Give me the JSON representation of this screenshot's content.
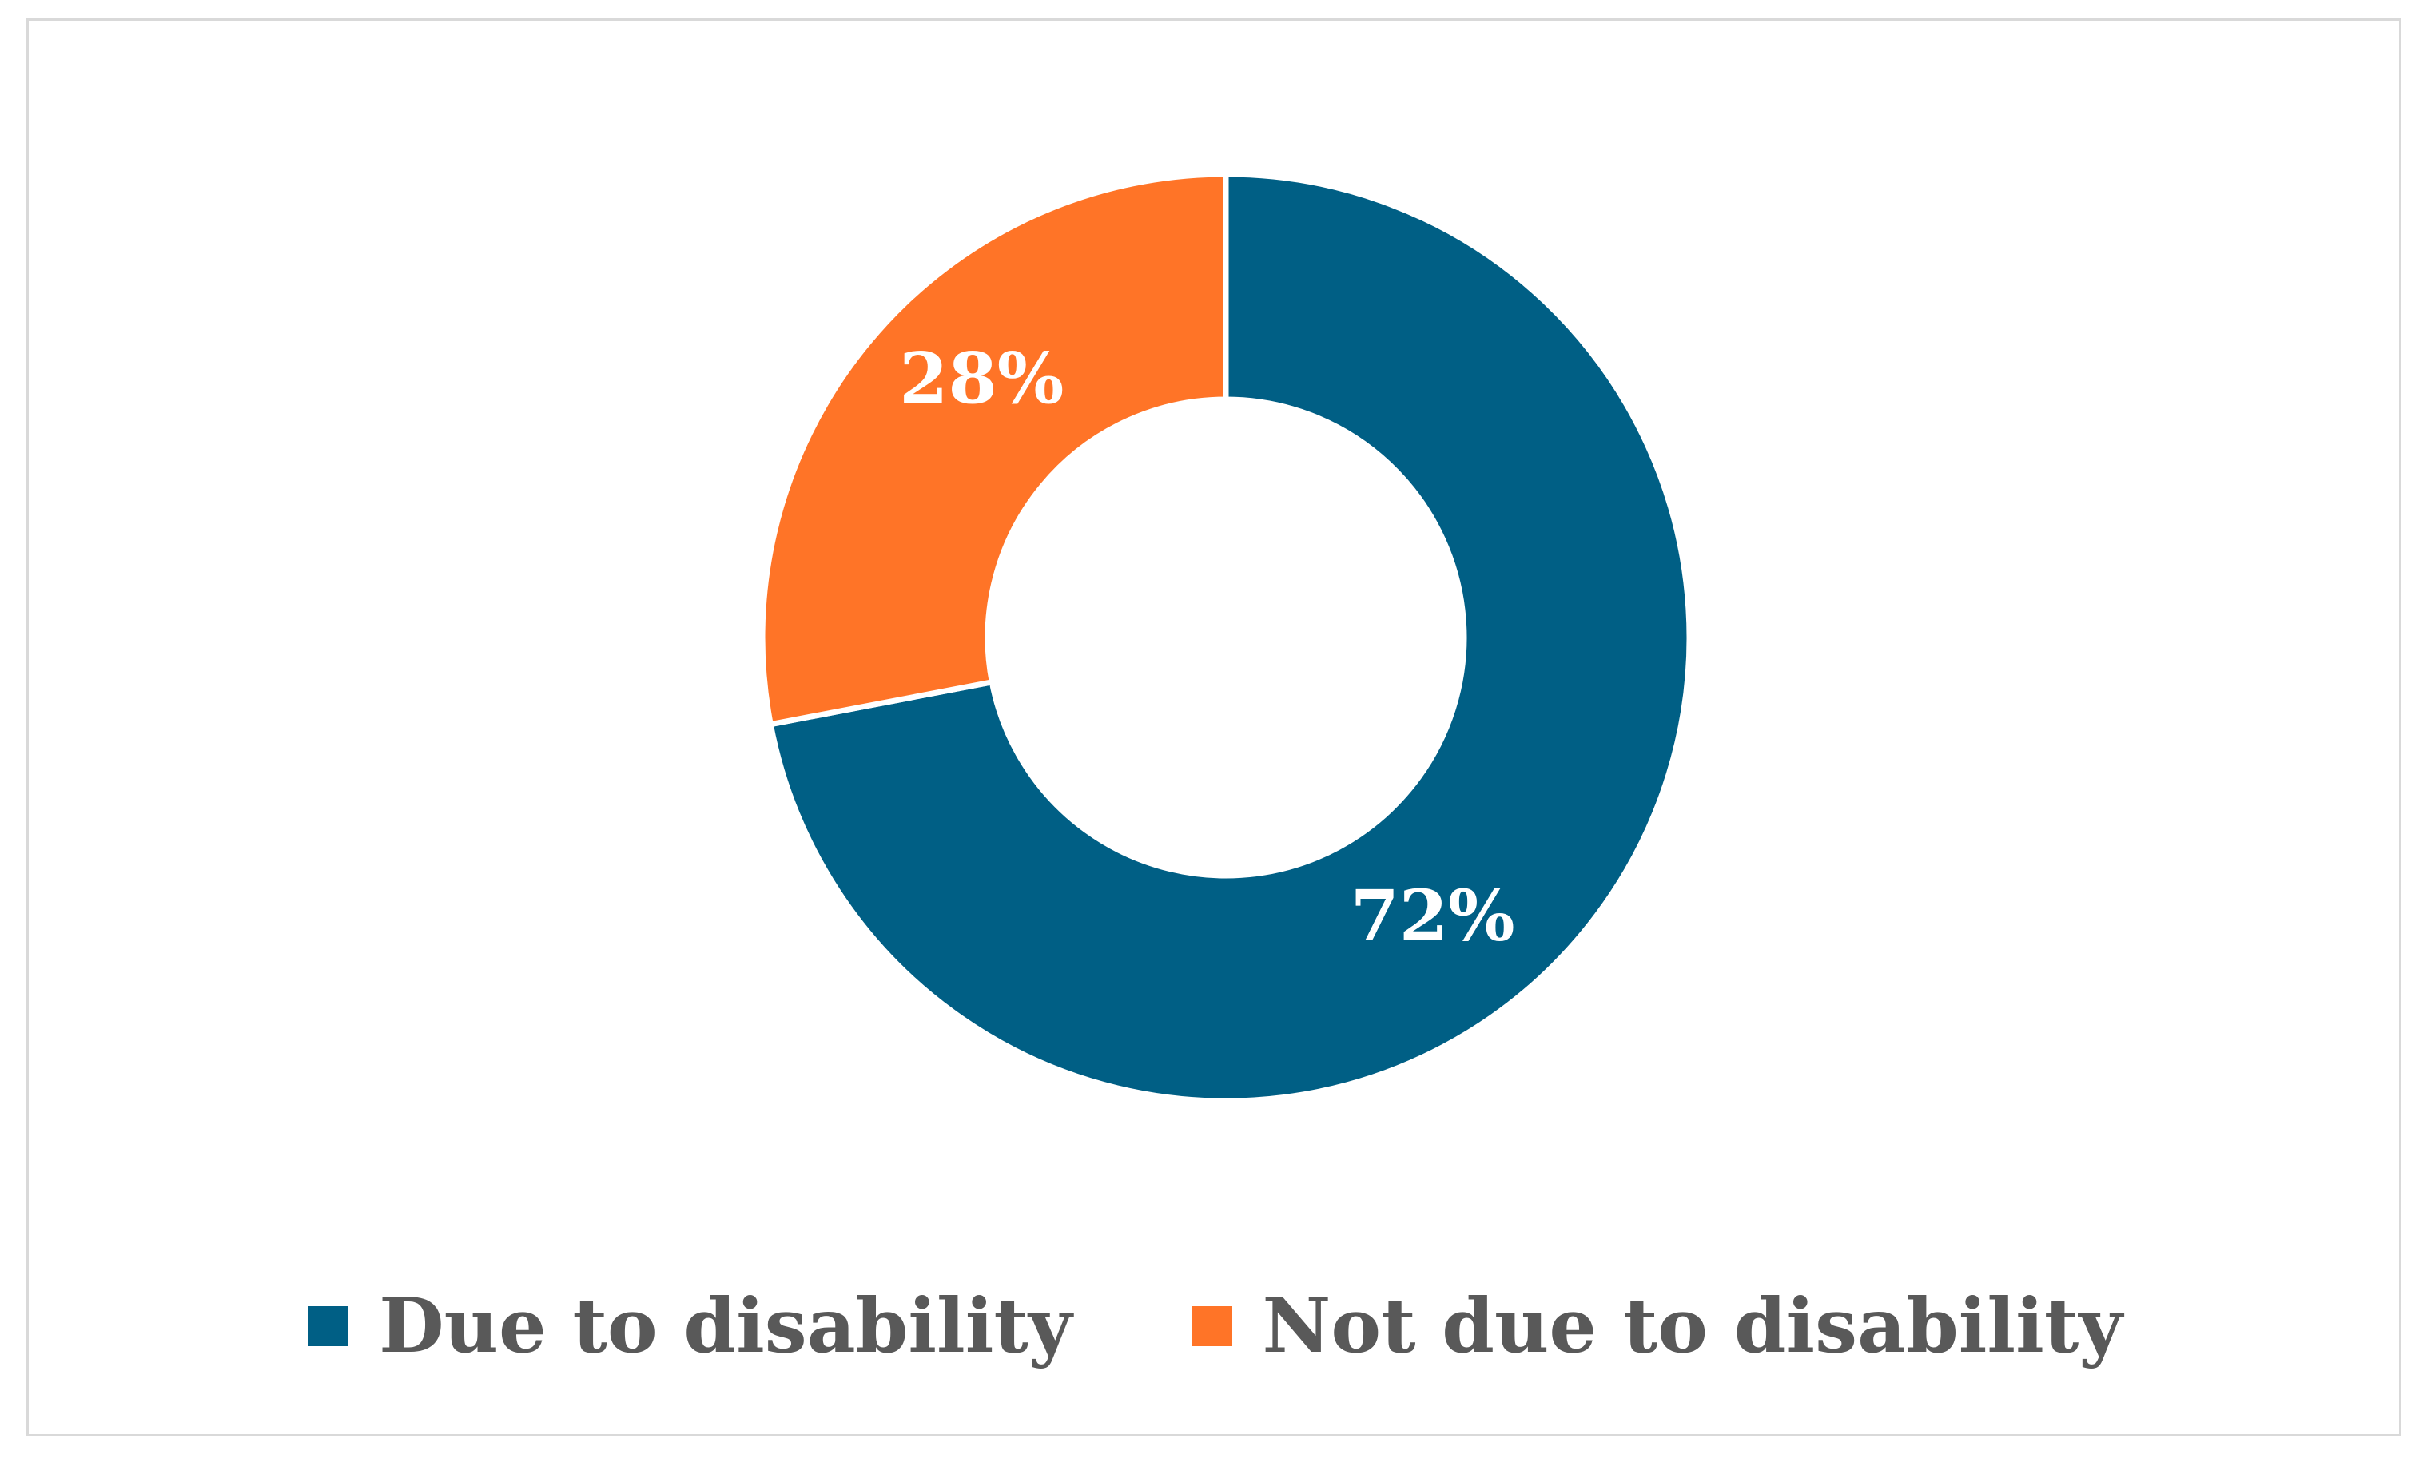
{
  "chart_data": {
    "type": "pie",
    "categories": [
      "Due to disability",
      "Not due to disability"
    ],
    "values": [
      72,
      28
    ],
    "data_labels": [
      "72%",
      "28%"
    ],
    "colors": [
      "#005F85",
      "#FF7427"
    ],
    "donut": true,
    "legend_position": "bottom"
  },
  "legend": {
    "items": [
      {
        "label": "Due to disability",
        "color": "#005F85"
      },
      {
        "label": "Not due to disability",
        "color": "#FF7427"
      }
    ]
  },
  "labels": {
    "slice_0": "72%",
    "slice_1": "28%"
  }
}
